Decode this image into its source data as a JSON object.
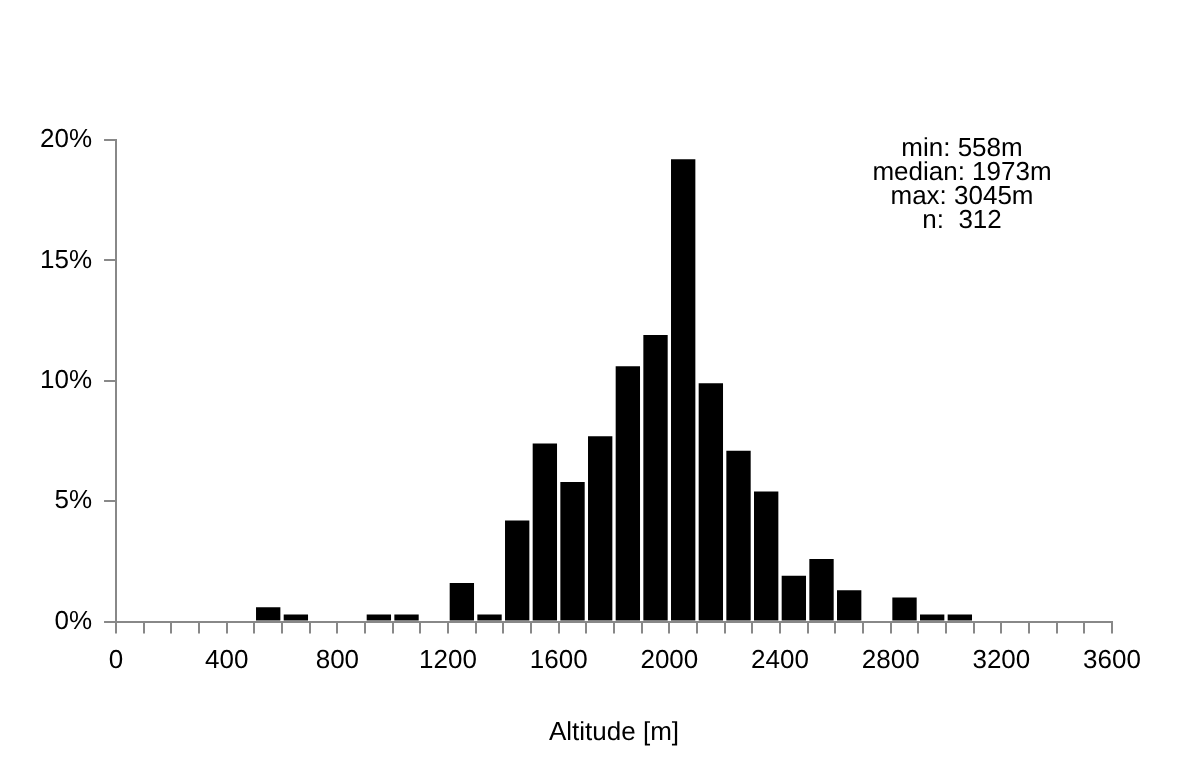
{
  "chart_data": {
    "type": "histogram",
    "xlabel": "Altitude [m]",
    "bins": [
      0,
      100,
      200,
      300,
      400,
      500,
      600,
      700,
      800,
      900,
      1000,
      1100,
      1200,
      1300,
      1400,
      1500,
      1600,
      1700,
      1800,
      1900,
      2000,
      2100,
      2200,
      2300,
      2400,
      2500,
      2600,
      2700,
      2800,
      2900,
      3000,
      3100,
      3200,
      3300,
      3400,
      3500,
      3600
    ],
    "values": [
      0,
      0,
      0,
      0,
      0,
      0.6,
      0.3,
      0,
      0,
      0.3,
      0.3,
      0,
      1.6,
      0.3,
      4.2,
      7.4,
      5.8,
      7.7,
      10.6,
      11.9,
      19.2,
      9.9,
      7.1,
      5.4,
      1.9,
      2.6,
      1.3,
      0,
      1.0,
      0.3,
      0.3,
      0,
      0,
      0,
      0,
      0
    ],
    "color": "#000000",
    "xlim": [
      0,
      3600
    ],
    "xticks": [
      0,
      {
        "value": 100,
        "label": null
      },
      {
        "value": 200,
        "label": null
      },
      {
        "value": 300,
        "label": null
      },
      400,
      {
        "value": 500,
        "label": null
      },
      {
        "value": 600,
        "label": null
      },
      {
        "value": 700,
        "label": null
      },
      800,
      {
        "value": 900,
        "label": null
      },
      {
        "value": 1000,
        "label": null
      },
      {
        "value": 1100,
        "label": null
      },
      1200,
      {
        "value": 1300,
        "label": null
      },
      {
        "value": 1400,
        "label": null
      },
      {
        "value": 1500,
        "label": null
      },
      1600,
      {
        "value": 1700,
        "label": null
      },
      {
        "value": 1800,
        "label": null
      },
      {
        "value": 1900,
        "label": null
      },
      2000,
      {
        "value": 2100,
        "label": null
      },
      {
        "value": 2200,
        "label": null
      },
      {
        "value": 2300,
        "label": null
      },
      2400,
      {
        "value": 2500,
        "label": null
      },
      {
        "value": 2600,
        "label": null
      },
      {
        "value": 2700,
        "label": null
      },
      2800,
      {
        "value": 2900,
        "label": null
      },
      {
        "value": 3000,
        "label": null
      },
      {
        "value": 3100,
        "label": null
      },
      3200,
      {
        "value": 3300,
        "label": null
      },
      {
        "value": 3400,
        "label": null
      },
      {
        "value": 3500,
        "label": null
      },
      3600
    ],
    "ylim": [
      0,
      20
    ],
    "yticks": [
      {
        "value": 0,
        "label": "0%"
      },
      {
        "value": 5,
        "label": "5%"
      },
      {
        "value": 10,
        "label": "10%"
      },
      {
        "value": 15,
        "label": "15%"
      },
      {
        "value": 20,
        "label": "20%"
      }
    ],
    "grid": false,
    "legend": false,
    "annotations": [
      "min: 558m",
      "median: 1973m",
      "max: 3045m",
      "n:  312"
    ]
  }
}
